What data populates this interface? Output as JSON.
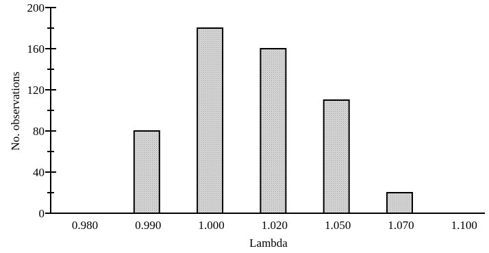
{
  "chart_data": {
    "type": "bar",
    "categories": [
      "0.980",
      "0.990",
      "1.000",
      "1.020",
      "1.050",
      "1.070",
      "1.100"
    ],
    "values": [
      0,
      80,
      180,
      160,
      110,
      20,
      0
    ],
    "xlabel": "Lambda",
    "ylabel": "No. observations",
    "ylim": [
      0,
      200
    ],
    "y_ticks": [
      "0",
      "40",
      "80",
      "120",
      "160",
      "200"
    ],
    "bar_fill": "#d9d9d9",
    "grid": false
  }
}
